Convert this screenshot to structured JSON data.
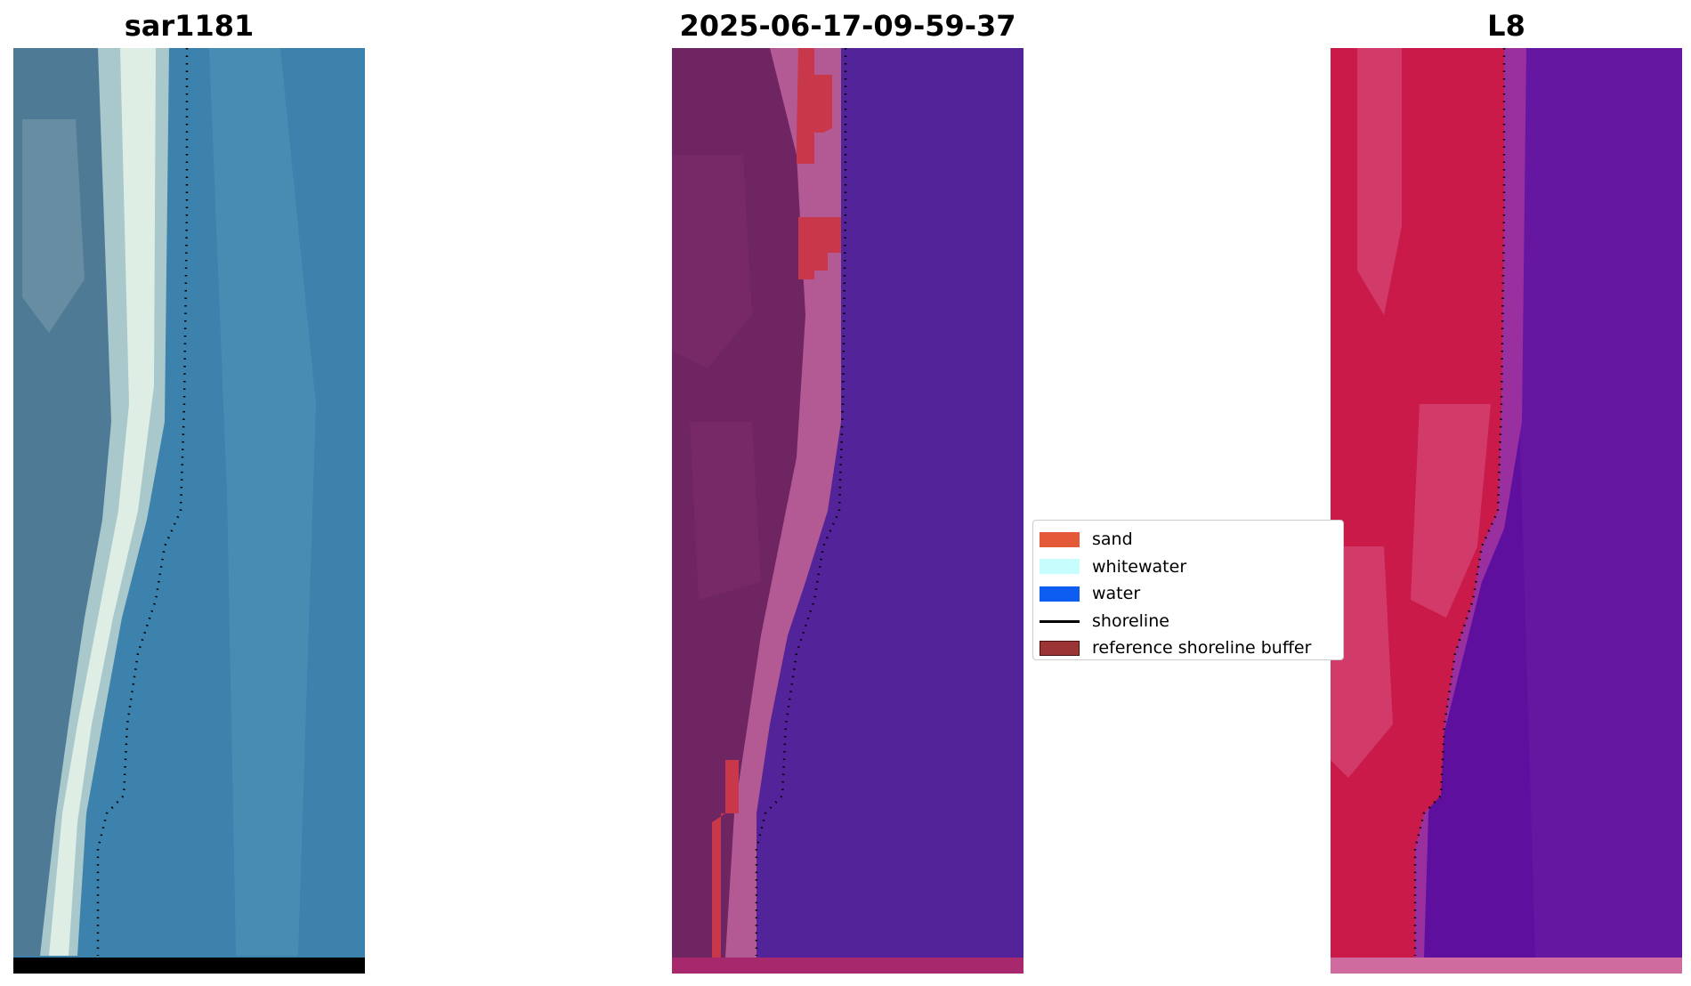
{
  "panels": {
    "rgb": {
      "title": "sar1181",
      "colors": {
        "land_dark": "#4f7a96",
        "land_light": "#7f9fb0",
        "beach": "#dfeee4",
        "beach_edge": "#a9c8cb",
        "water": "#3d82ad",
        "water_light": "#5aa0c0",
        "nodata": "#000000"
      }
    },
    "classified": {
      "title": "2025-06-17-09-59-37",
      "colors": {
        "land": "#6e2562",
        "land_mid": "#7b2b6a",
        "beach": "#b35a95",
        "sand": "#c8374a",
        "water": "#53239a",
        "bottom_strip": "#a8286e"
      }
    },
    "ndwi": {
      "title": "L8",
      "colors": {
        "land": "#c91a4a",
        "land_light": "#d85583",
        "transition": "#9a2fa0",
        "water": "#5e0f9d",
        "water_light": "#6b1fa6",
        "bottom_strip": "#cf6b9f"
      }
    }
  },
  "legend": {
    "items": [
      {
        "label": "sand",
        "color": "#e45a39",
        "kind": "patch"
      },
      {
        "label": "whitewater",
        "color": "#c8fdfd",
        "kind": "patch"
      },
      {
        "label": "water",
        "color": "#0d5ef0",
        "kind": "patch"
      },
      {
        "label": "shoreline",
        "color": "#000000",
        "kind": "line"
      },
      {
        "label": "reference shoreline buffer",
        "color": "#9b3434",
        "kind": "patch-edged"
      }
    ]
  },
  "shoreline": {
    "color": "#000000"
  }
}
